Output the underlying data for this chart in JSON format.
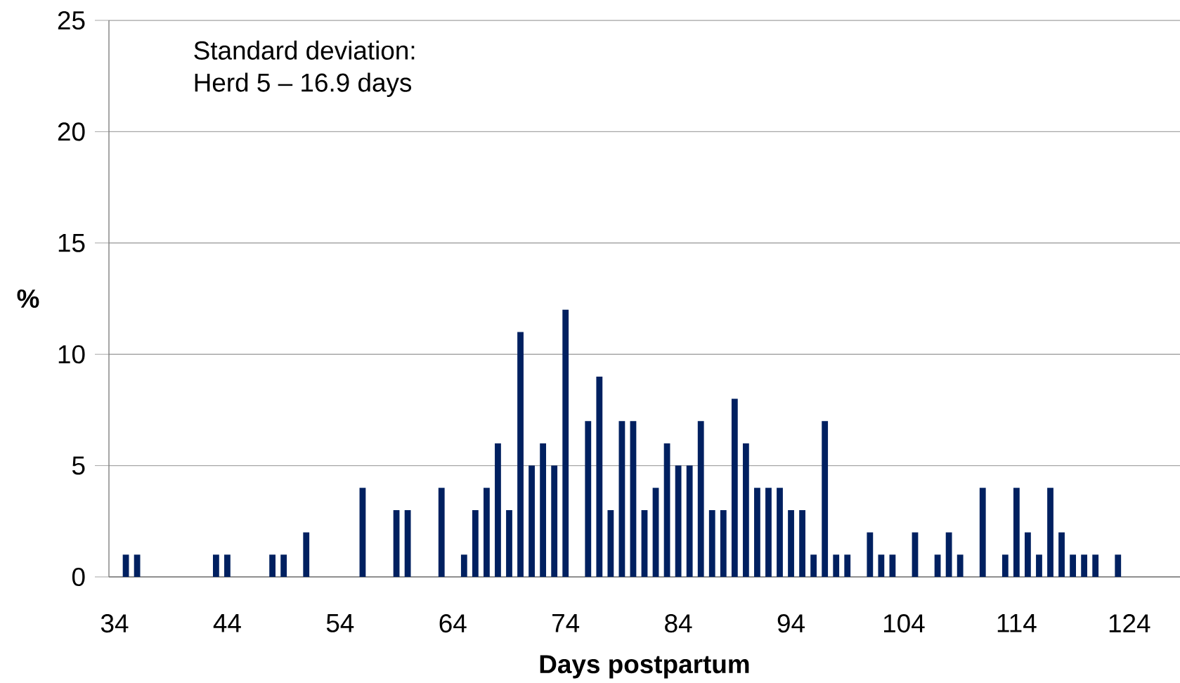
{
  "chart_data": {
    "type": "bar",
    "xlabel": "Days postpartum",
    "ylabel": "%",
    "annotations": [
      "Standard deviation:",
      "Herd 5 – 16.9 days"
    ],
    "categories": [
      "34",
      null,
      null,
      null,
      null,
      null,
      null,
      null,
      null,
      null,
      "44",
      null,
      null,
      null,
      null,
      null,
      null,
      null,
      null,
      null,
      "54",
      null,
      null,
      null,
      null,
      null,
      null,
      null,
      null,
      null,
      "64",
      null,
      null,
      null,
      null,
      null,
      null,
      null,
      null,
      null,
      "74",
      null,
      null,
      null,
      null,
      null,
      null,
      null,
      null,
      null,
      "84",
      null,
      null,
      null,
      null,
      null,
      null,
      null,
      null,
      null,
      "94",
      null,
      null,
      null,
      null,
      null,
      null,
      null,
      null,
      null,
      "104",
      null,
      null,
      null,
      null,
      null,
      null,
      null,
      null,
      null,
      "114",
      null,
      null,
      null,
      null,
      null,
      null,
      null,
      null,
      null,
      "124",
      null,
      null,
      null,
      null
    ],
    "values": [
      0,
      1,
      1,
      0,
      0,
      0,
      0,
      0,
      0,
      1,
      1,
      0,
      0,
      0,
      1,
      1,
      0,
      2,
      0,
      0,
      0,
      0,
      4,
      0,
      0,
      3,
      3,
      0,
      0,
      4,
      0,
      1,
      3,
      4,
      6,
      3,
      11,
      5,
      6,
      5,
      12,
      0,
      7,
      9,
      3,
      7,
      7,
      3,
      4,
      6,
      5,
      5,
      7,
      3,
      3,
      8,
      6,
      4,
      4,
      4,
      3,
      3,
      1,
      7,
      1,
      1,
      0,
      2,
      1,
      1,
      0,
      2,
      0,
      1,
      2,
      1,
      0,
      4,
      0,
      1,
      4,
      2,
      1,
      4,
      2,
      1,
      1,
      1,
      0,
      1,
      0,
      0,
      0,
      0,
      0
    ],
    "color": "#002060",
    "ylim": [
      0,
      25
    ],
    "yticks": [
      0,
      5,
      10,
      15,
      20,
      25
    ],
    "grid": "y"
  }
}
